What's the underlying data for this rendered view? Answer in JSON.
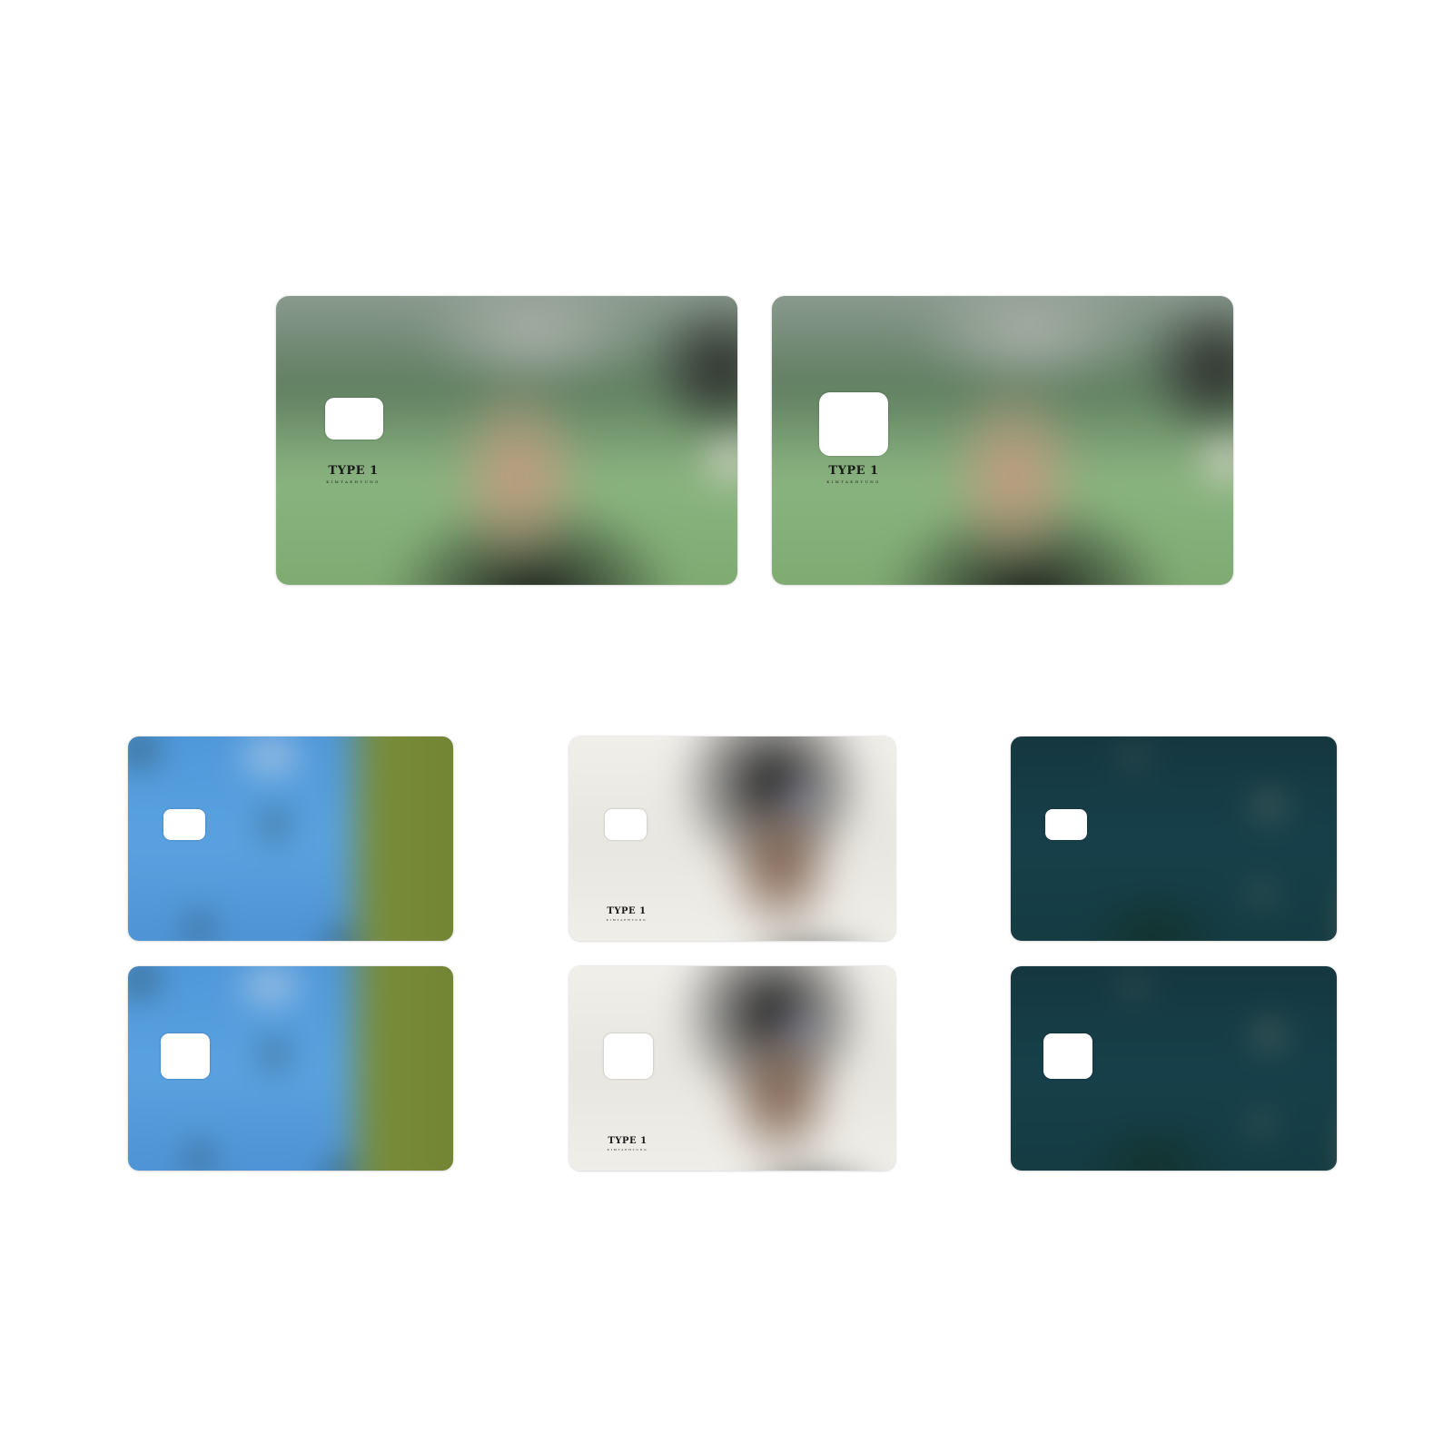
{
  "cards": [
    {
      "id": "large-left",
      "background": "portrait",
      "has_logo": true
    },
    {
      "id": "large-right",
      "background": "portrait",
      "has_logo": true
    },
    {
      "id": "sky-top",
      "background": "sky",
      "has_logo": false
    },
    {
      "id": "face-top",
      "background": "face",
      "has_logo": true
    },
    {
      "id": "teal-top",
      "background": "teal",
      "has_logo": false
    },
    {
      "id": "sky-bottom",
      "background": "sky",
      "has_logo": false
    },
    {
      "id": "face-bottom",
      "background": "face",
      "has_logo": true
    },
    {
      "id": "teal-bottom",
      "background": "teal",
      "has_logo": false
    }
  ],
  "logo": {
    "title": "TYPE 1",
    "subtitle": "KIMTAEHYUNG"
  }
}
